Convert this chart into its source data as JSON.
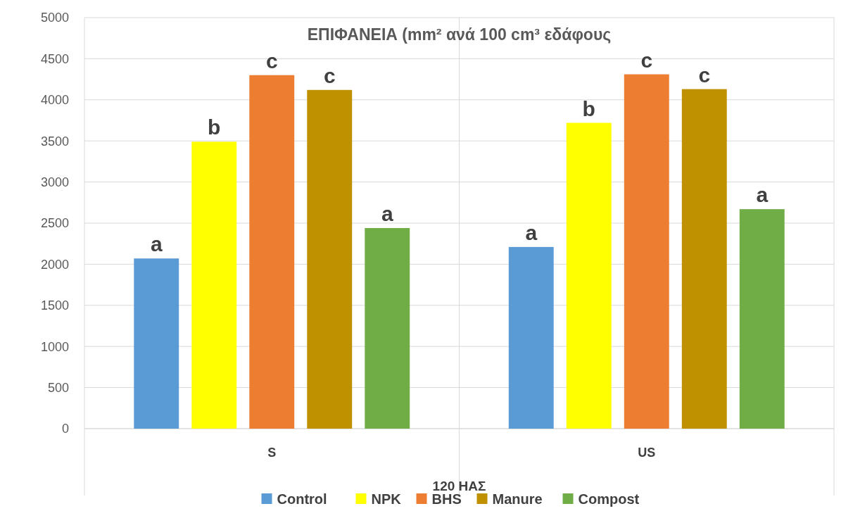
{
  "chart_data": {
    "type": "bar",
    "title": "ΕΠΙΦΑΝΕΙΑ (mm² ανά 100 cm³ εδάφους",
    "xlabel": "120 ΗΑΣ",
    "categories": [
      "S",
      "US"
    ],
    "series": [
      {
        "name": "Control",
        "color": "#5b9bd5",
        "values": [
          2070,
          2210
        ],
        "value_labels": [
          "a",
          "a"
        ]
      },
      {
        "name": "NPK",
        "color": "#ffff00",
        "values": [
          3490,
          3720
        ],
        "value_labels": [
          "b",
          "b"
        ]
      },
      {
        "name": "BHS",
        "color": "#ed7d31",
        "values": [
          4300,
          4310
        ],
        "value_labels": [
          "c",
          "c"
        ]
      },
      {
        "name": "Manure",
        "color": "#bf9000",
        "values": [
          4120,
          4130
        ],
        "value_labels": [
          "c",
          "c"
        ]
      },
      {
        "name": "Compost",
        "color": "#70ad47",
        "values": [
          2440,
          2670
        ],
        "value_labels": [
          "a",
          "a"
        ]
      }
    ],
    "ylim": [
      0,
      5000
    ],
    "yticks": [
      0,
      500,
      1000,
      1500,
      2000,
      2500,
      3000,
      3500,
      4000,
      4500,
      5000
    ],
    "grid": true,
    "legend": "bottom"
  }
}
